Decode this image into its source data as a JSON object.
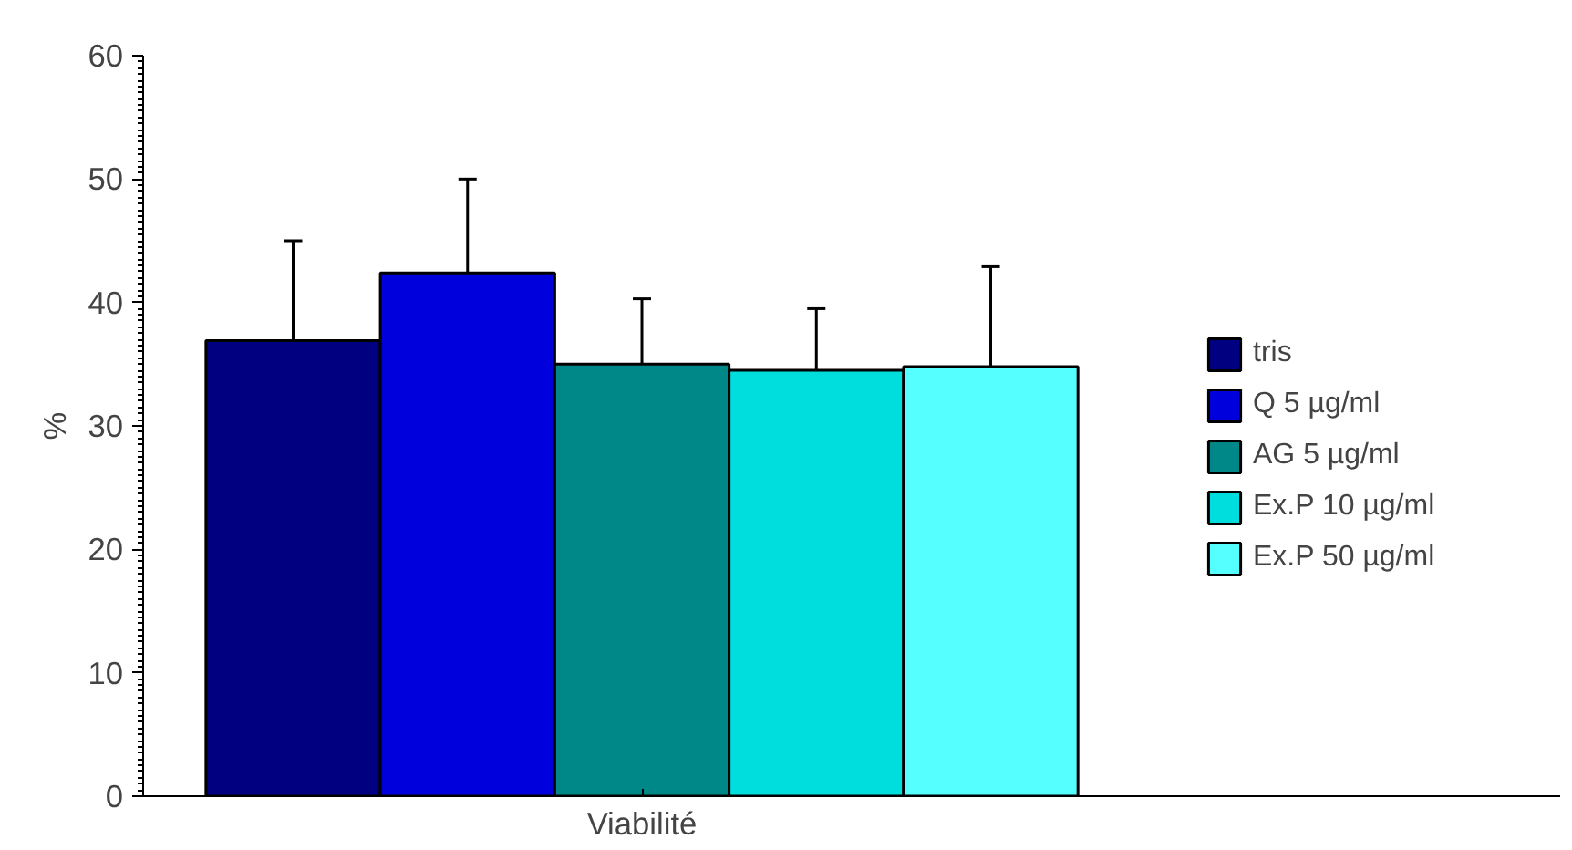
{
  "chart_data": {
    "type": "bar",
    "ylabel": "%",
    "categories": [
      "Viabilité"
    ],
    "series": [
      {
        "name": "tris",
        "color": "#000080",
        "values": [
          36.9
        ],
        "errors": [
          [
            36.9,
            45.0
          ]
        ]
      },
      {
        "name": "Q 5 µg/ml",
        "color": "#0000dd",
        "values": [
          42.4
        ],
        "errors": [
          [
            42.4,
            50.0
          ]
        ]
      },
      {
        "name": "AG 5 µg/ml",
        "color": "#008888",
        "values": [
          35.0
        ],
        "errors": [
          [
            35.0,
            40.3
          ]
        ]
      },
      {
        "name": "Ex.P 10 µg/ml",
        "color": "#00dddd",
        "values": [
          34.5
        ],
        "errors": [
          [
            34.5,
            39.5
          ]
        ]
      },
      {
        "name": "Ex.P 50 µg/ml",
        "color": "#55ffff",
        "values": [
          34.8
        ],
        "errors": [
          [
            34.8,
            42.9
          ]
        ]
      }
    ],
    "ylim": [
      0,
      60
    ],
    "yticks": [
      0,
      10,
      20,
      30,
      40,
      50,
      60
    ],
    "grid": false,
    "legend": "right"
  }
}
